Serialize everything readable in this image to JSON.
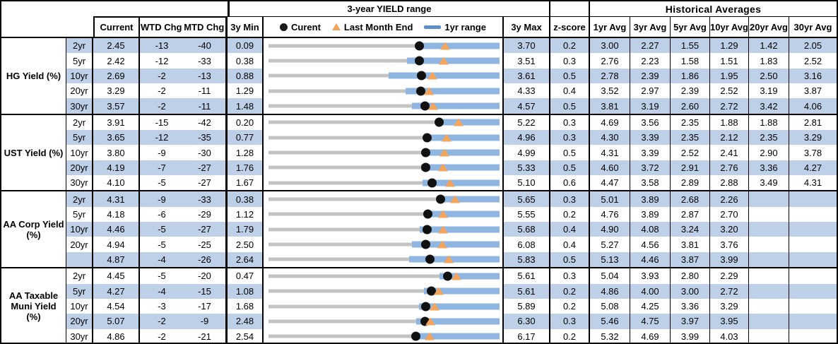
{
  "header": {
    "hist_title": "Historical Averages",
    "col_current": "Current",
    "col_wtd": "WTD Chg",
    "col_mtd": "MTD Chg",
    "col_3ymin": "3y Min",
    "col_3ymax": "3y Max",
    "col_zscore": "z-score",
    "avg_cols": [
      "1yr Avg",
      "3yr Avg",
      "5yr Avg",
      "10yr Avg",
      "20yr Avg",
      "30yr Avg"
    ],
    "legend": {
      "current": "Curent",
      "last_month_end": "Last Month End",
      "range_1yr": "1yr range"
    }
  },
  "colors": {
    "stripe": "#bdd0e8",
    "range_bar": "#8fb5e1",
    "range_line": "#c3c3c3",
    "current_dot": "#111111",
    "last_month_marker": "#f5a45c",
    "legend_dash": "#5b8ec8"
  },
  "chart_data": {
    "type": "table",
    "title": "3-year YIELD range",
    "legend": [
      "Curent",
      "Last Month End",
      "1yr range"
    ],
    "legend_position": "top",
    "columns": [
      "Current",
      "WTD Chg",
      "MTD Chg",
      "3y Min",
      "3y Max",
      "z-score",
      "1yr Avg",
      "3yr Avg",
      "5yr Avg",
      "10yr Avg",
      "20yr Avg",
      "30yr Avg"
    ],
    "range_chart_note": "Each row: gray line spans 3y Min to 3y Max; blue bar is 1yr range; black dot = current; orange triangle = last month end",
    "groups": [
      {
        "label": "HG Yield (%)",
        "rows": [
          {
            "tenor": "2yr",
            "current": "2.45",
            "wtd": "-13",
            "mtd": "-40",
            "min3y": "0.09",
            "max3y": "3.70",
            "z": "0.2",
            "last_month_end": 2.85,
            "yr1_low": 2.4,
            "yr1_high": 3.7,
            "avgs": [
              "3.00",
              "2.27",
              "1.55",
              "1.29",
              "1.42",
              "2.05"
            ]
          },
          {
            "tenor": "5yr",
            "current": "2.42",
            "wtd": "-12",
            "mtd": "-33",
            "min3y": "0.38",
            "max3y": "3.51",
            "z": "0.3",
            "last_month_end": 2.75,
            "yr1_low": 2.26,
            "yr1_high": 3.51,
            "avgs": [
              "2.76",
              "2.23",
              "1.58",
              "1.51",
              "1.83",
              "2.52"
            ]
          },
          {
            "tenor": "10yr",
            "current": "2.69",
            "wtd": "-2",
            "mtd": "-13",
            "min3y": "0.88",
            "max3y": "3.61",
            "z": "0.5",
            "last_month_end": 2.82,
            "yr1_low": 2.3,
            "yr1_high": 3.61,
            "avgs": [
              "2.78",
              "2.39",
              "1.86",
              "1.95",
              "2.50",
              "3.16"
            ]
          },
          {
            "tenor": "20yr",
            "current": "3.29",
            "wtd": "-2",
            "mtd": "-11",
            "min3y": "1.29",
            "max3y": "4.33",
            "z": "0.4",
            "last_month_end": 3.4,
            "yr1_low": 3.09,
            "yr1_high": 4.33,
            "avgs": [
              "3.52",
              "2.97",
              "2.39",
              "2.52",
              "3.19",
              "3.87"
            ]
          },
          {
            "tenor": "30yr",
            "current": "3.57",
            "wtd": "-2",
            "mtd": "-11",
            "min3y": "1.48",
            "max3y": "4.57",
            "z": "0.5",
            "last_month_end": 3.68,
            "yr1_low": 3.4,
            "yr1_high": 4.57,
            "avgs": [
              "3.81",
              "3.19",
              "2.60",
              "2.72",
              "3.42",
              "4.06"
            ]
          }
        ]
      },
      {
        "label": "UST Yield (%)",
        "rows": [
          {
            "tenor": "2yr",
            "current": "3.91",
            "wtd": "-15",
            "mtd": "-42",
            "min3y": "0.20",
            "max3y": "5.22",
            "z": "0.3",
            "last_month_end": 4.33,
            "yr1_low": 3.85,
            "yr1_high": 5.22,
            "avgs": [
              "4.69",
              "3.56",
              "2.35",
              "1.88",
              "1.88",
              "2.81"
            ]
          },
          {
            "tenor": "5yr",
            "current": "3.65",
            "wtd": "-12",
            "mtd": "-35",
            "min3y": "0.77",
            "max3y": "4.96",
            "z": "0.3",
            "last_month_end": 4.0,
            "yr1_low": 3.6,
            "yr1_high": 4.96,
            "avgs": [
              "4.30",
              "3.39",
              "2.35",
              "2.12",
              "2.35",
              "3.29"
            ]
          },
          {
            "tenor": "10yr",
            "current": "3.80",
            "wtd": "-9",
            "mtd": "-30",
            "min3y": "1.28",
            "max3y": "4.99",
            "z": "0.5",
            "last_month_end": 4.1,
            "yr1_low": 3.76,
            "yr1_high": 4.99,
            "avgs": [
              "4.31",
              "3.39",
              "2.52",
              "2.41",
              "2.90",
              "3.78"
            ]
          },
          {
            "tenor": "20yr",
            "current": "4.19",
            "wtd": "-7",
            "mtd": "-27",
            "min3y": "1.76",
            "max3y": "5.33",
            "z": "0.5",
            "last_month_end": 4.46,
            "yr1_low": 4.12,
            "yr1_high": 5.33,
            "avgs": [
              "4.60",
              "3.72",
              "2.91",
              "2.76",
              "3.36",
              "4.27"
            ]
          },
          {
            "tenor": "30yr",
            "current": "4.10",
            "wtd": "-5",
            "mtd": "-27",
            "min3y": "1.67",
            "max3y": "5.10",
            "z": "0.6",
            "last_month_end": 4.37,
            "yr1_low": 3.96,
            "yr1_high": 5.1,
            "avgs": [
              "4.47",
              "3.58",
              "2.89",
              "2.88",
              "3.49",
              "4.31"
            ]
          }
        ]
      },
      {
        "label": "AA Corp Yield (%)",
        "rows": [
          {
            "tenor": "2yr",
            "current": "4.31",
            "wtd": "-9",
            "mtd": "-33",
            "min3y": "0.38",
            "max3y": "5.65",
            "z": "0.3",
            "last_month_end": 4.64,
            "yr1_low": 4.21,
            "yr1_high": 5.65,
            "avgs": [
              "5.01",
              "3.89",
              "2.68",
              "2.26",
              "",
              ""
            ]
          },
          {
            "tenor": "5yr",
            "current": "4.18",
            "wtd": "-6",
            "mtd": "-29",
            "min3y": "1.12",
            "max3y": "5.55",
            "z": "0.2",
            "last_month_end": 4.47,
            "yr1_low": 4.11,
            "yr1_high": 5.55,
            "avgs": [
              "4.76",
              "3.89",
              "2.87",
              "2.70",
              "",
              ""
            ]
          },
          {
            "tenor": "10yr",
            "current": "4.46",
            "wtd": "-5",
            "mtd": "-27",
            "min3y": "1.79",
            "max3y": "5.68",
            "z": "0.4",
            "last_month_end": 4.73,
            "yr1_low": 4.33,
            "yr1_high": 5.68,
            "avgs": [
              "4.90",
              "4.08",
              "3.24",
              "3.20",
              "",
              ""
            ]
          },
          {
            "tenor": "20yr",
            "current": "4.94",
            "wtd": "-5",
            "mtd": "-25",
            "min3y": "2.50",
            "max3y": "6.08",
            "z": "0.4",
            "last_month_end": 5.19,
            "yr1_low": 4.72,
            "yr1_high": 6.08,
            "avgs": [
              "5.27",
              "4.56",
              "3.81",
              "3.76",
              "",
              ""
            ]
          },
          {
            "tenor": "",
            "current": "4.87",
            "wtd": "-4",
            "mtd": "-26",
            "min3y": "2.64",
            "max3y": "5.83",
            "z": "0.5",
            "last_month_end": 5.13,
            "yr1_low": 4.58,
            "yr1_high": 5.83,
            "avgs": [
              "5.13",
              "4.46",
              "3.87",
              "3.99",
              "",
              ""
            ]
          }
        ]
      },
      {
        "label": "AA Taxable Muni Yield (%)",
        "rows": [
          {
            "tenor": "2yr",
            "current": "4.45",
            "wtd": "-5",
            "mtd": "-20",
            "min3y": "0.47",
            "max3y": "5.61",
            "z": "0.3",
            "last_month_end": 4.65,
            "yr1_low": 4.28,
            "yr1_high": 5.61,
            "avgs": [
              "5.04",
              "3.93",
              "2.80",
              "2.29",
              "",
              ""
            ]
          },
          {
            "tenor": "5yr",
            "current": "4.27",
            "wtd": "-4",
            "mtd": "-15",
            "min3y": "1.08",
            "max3y": "5.61",
            "z": "0.2",
            "last_month_end": 4.42,
            "yr1_low": 4.13,
            "yr1_high": 5.61,
            "avgs": [
              "4.86",
              "4.00",
              "3.00",
              "2.72",
              "",
              ""
            ]
          },
          {
            "tenor": "10yr",
            "current": "4.54",
            "wtd": "-3",
            "mtd": "-17",
            "min3y": "1.68",
            "max3y": "5.89",
            "z": "0.2",
            "last_month_end": 4.71,
            "yr1_low": 4.42,
            "yr1_high": 5.89,
            "avgs": [
              "5.08",
              "4.25",
              "3.36",
              "3.29",
              "",
              ""
            ]
          },
          {
            "tenor": "20yr",
            "current": "5.07",
            "wtd": "-2",
            "mtd": "-9",
            "min3y": "2.48",
            "max3y": "6.30",
            "z": "0.3",
            "last_month_end": 5.16,
            "yr1_low": 4.92,
            "yr1_high": 6.3,
            "avgs": [
              "5.46",
              "4.75",
              "3.97",
              "3.95",
              "",
              ""
            ]
          },
          {
            "tenor": "30yr",
            "current": "4.86",
            "wtd": "-2",
            "mtd": "-21",
            "min3y": "2.54",
            "max3y": "6.17",
            "z": "0.2",
            "last_month_end": 5.07,
            "yr1_low": 4.8,
            "yr1_high": 6.17,
            "avgs": [
              "5.32",
              "4.69",
              "3.99",
              "4.03",
              "",
              ""
            ]
          }
        ]
      }
    ]
  }
}
